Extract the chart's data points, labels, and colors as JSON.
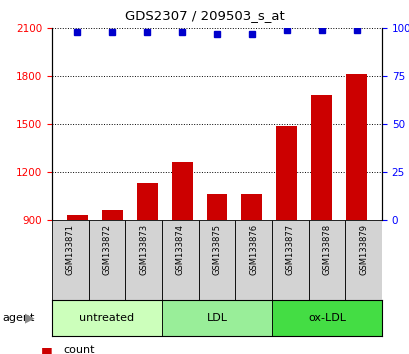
{
  "title": "GDS2307 / 209503_s_at",
  "samples": [
    "GSM133871",
    "GSM133872",
    "GSM133873",
    "GSM133874",
    "GSM133875",
    "GSM133876",
    "GSM133877",
    "GSM133878",
    "GSM133879"
  ],
  "counts": [
    930,
    960,
    1130,
    1260,
    1065,
    1065,
    1490,
    1680,
    1810
  ],
  "percentiles": [
    98,
    98,
    98,
    98,
    97,
    97,
    99,
    99,
    99
  ],
  "ylim_left": [
    900,
    2100
  ],
  "ylim_right": [
    0,
    100
  ],
  "yticks_left": [
    900,
    1200,
    1500,
    1800,
    2100
  ],
  "yticks_right": [
    0,
    25,
    50,
    75,
    100
  ],
  "bar_color": "#cc0000",
  "dot_color": "#0000cc",
  "bar_bottom": 900,
  "groups": [
    {
      "label": "untreated",
      "start": 0,
      "end": 3,
      "color": "#ccffbb"
    },
    {
      "label": "LDL",
      "start": 3,
      "end": 6,
      "color": "#99ee99"
    },
    {
      "label": "ox-LDL",
      "start": 6,
      "end": 9,
      "color": "#44dd44"
    }
  ],
  "xlabel_agent": "agent",
  "legend_count_color": "#cc0000",
  "legend_dot_color": "#0000cc",
  "background_color": "#ffffff",
  "label_area_color": "#d3d3d3"
}
